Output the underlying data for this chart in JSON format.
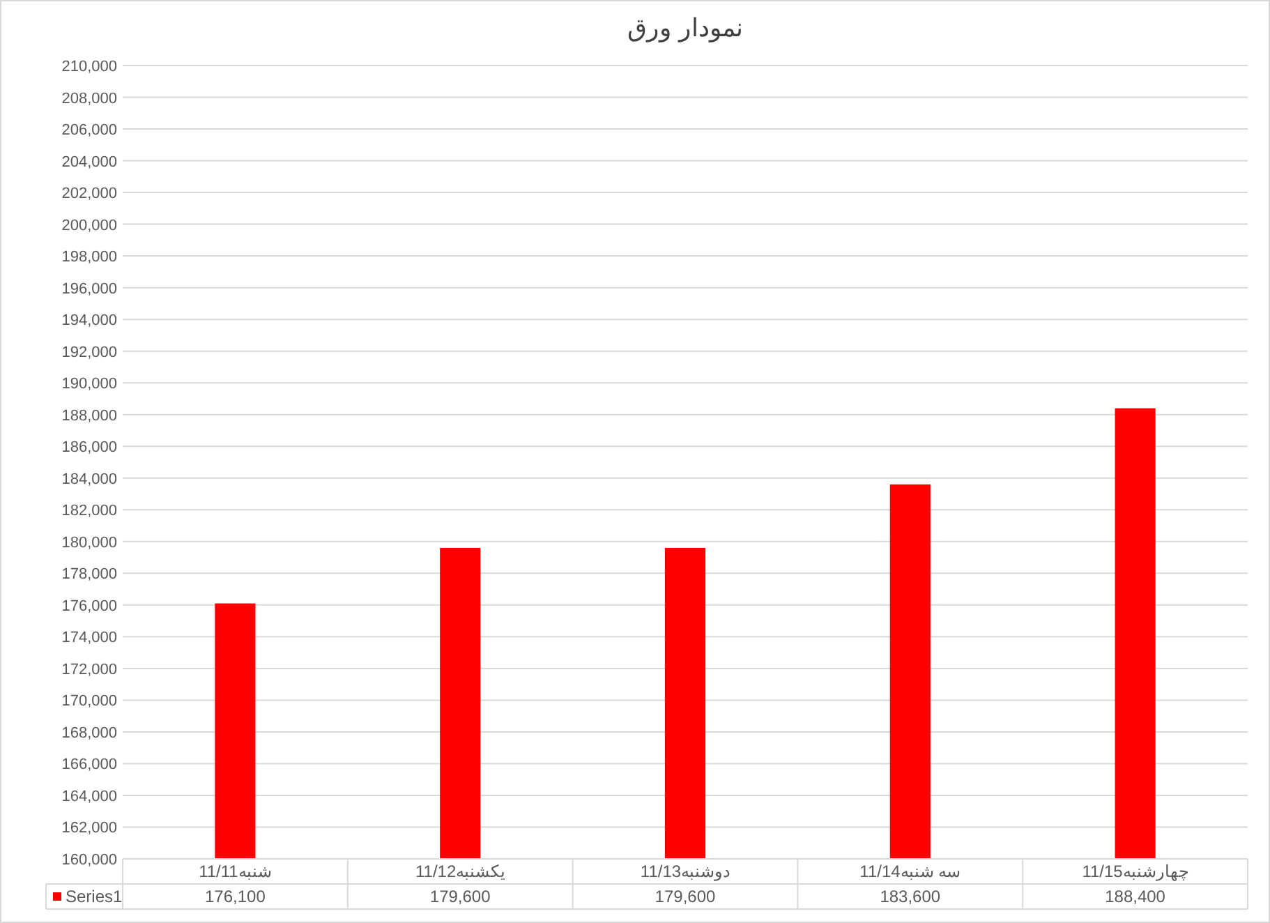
{
  "chart_data": {
    "type": "bar",
    "title": "نمودار ورق",
    "categories": [
      "11/11شنبه",
      "11/12یکشنبه",
      "11/13دوشنبه",
      "11/14سه شنبه",
      "11/15چهارشنبه"
    ],
    "series": [
      {
        "name": "Series1",
        "color": "#ff0000",
        "values": [
          176100,
          179600,
          179600,
          183600,
          188400
        ],
        "value_labels": [
          "176,100",
          "179,600",
          "179,600",
          "183,600",
          "188,400"
        ]
      }
    ],
    "ylim": [
      160000,
      210000
    ],
    "yticks": [
      {
        "value": 160000,
        "label": "160,000"
      },
      {
        "value": 162000,
        "label": "162,000"
      },
      {
        "value": 164000,
        "label": "164,000"
      },
      {
        "value": 166000,
        "label": "166,000"
      },
      {
        "value": 168000,
        "label": "168,000"
      },
      {
        "value": 170000,
        "label": "170,000"
      },
      {
        "value": 172000,
        "label": "172,000"
      },
      {
        "value": 174000,
        "label": "174,000"
      },
      {
        "value": 176000,
        "label": "176,000"
      },
      {
        "value": 178000,
        "label": "178,000"
      },
      {
        "value": 180000,
        "label": "180,000"
      },
      {
        "value": 182000,
        "label": "182,000"
      },
      {
        "value": 184000,
        "label": "184,000"
      },
      {
        "value": 186000,
        "label": "186,000"
      },
      {
        "value": 188000,
        "label": "188,000"
      },
      {
        "value": 190000,
        "label": "190,000"
      },
      {
        "value": 192000,
        "label": "192,000"
      },
      {
        "value": 194000,
        "label": "194,000"
      },
      {
        "value": 196000,
        "label": "196,000"
      },
      {
        "value": 198000,
        "label": "198,000"
      },
      {
        "value": 200000,
        "label": "200,000"
      },
      {
        "value": 202000,
        "label": "202,000"
      },
      {
        "value": 204000,
        "label": "204,000"
      },
      {
        "value": 206000,
        "label": "206,000"
      },
      {
        "value": 208000,
        "label": "208,000"
      },
      {
        "value": 210000,
        "label": "210,000"
      }
    ],
    "grid": "y",
    "legend": "bottom"
  }
}
